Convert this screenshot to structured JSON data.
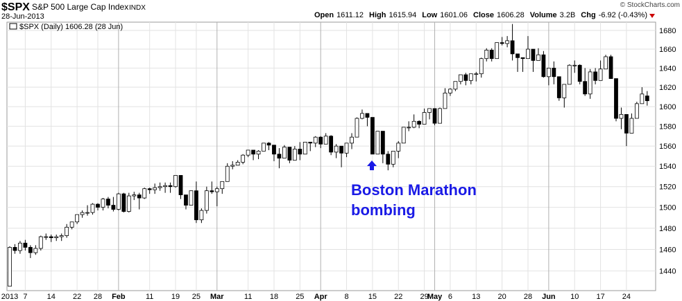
{
  "chart_data": {
    "type": "candlestick",
    "symbol": "$SPX",
    "name": "S&P 500 Large Cap Index",
    "exchange": "INDX",
    "date": "28-Jun-2013",
    "copyright": "© StockCharts.com",
    "legend": "$SPX (Daily) 1606.28 (28 Jun)",
    "quote": [
      {
        "label": "Open",
        "value": "1611.12"
      },
      {
        "label": "High",
        "value": "1615.94"
      },
      {
        "label": "Low",
        "value": "1601.06"
      },
      {
        "label": "Close",
        "value": "1606.28"
      },
      {
        "label": "Volume",
        "value": "3.2B"
      },
      {
        "label": "Chg",
        "value": "-6.92 (-0.43%)"
      }
    ],
    "annotation": [
      "Boston Marathon",
      "bombing"
    ],
    "log_scale": true,
    "grid": true,
    "ylim": [
      1422,
      1689
    ],
    "yticks": [
      1440,
      1460,
      1480,
      1500,
      1520,
      1540,
      1560,
      1580,
      1600,
      1620,
      1640,
      1660,
      1680
    ],
    "categories": [
      "2013",
      null,
      null,
      "7",
      null,
      null,
      null,
      null,
      "14",
      null,
      null,
      null,
      null,
      "22",
      null,
      null,
      null,
      "28",
      null,
      null,
      null,
      "Feb",
      null,
      null,
      null,
      null,
      null,
      "11",
      null,
      null,
      null,
      null,
      "19",
      null,
      null,
      null,
      "25",
      null,
      null,
      null,
      "Mar",
      null,
      null,
      null,
      null,
      null,
      "11",
      null,
      null,
      null,
      null,
      "18",
      null,
      null,
      null,
      null,
      "25",
      null,
      null,
      null,
      "Apr",
      null,
      null,
      null,
      null,
      "8",
      null,
      null,
      null,
      null,
      "15",
      null,
      null,
      null,
      null,
      "22",
      null,
      null,
      null,
      null,
      "29",
      null,
      "May",
      null,
      null,
      "6",
      null,
      null,
      null,
      null,
      "13",
      null,
      null,
      null,
      null,
      "20",
      null,
      null,
      null,
      null,
      "28",
      null,
      null,
      null,
      "Jun",
      null,
      null,
      null,
      null,
      "10",
      null,
      null,
      null,
      null,
      "17",
      null,
      null,
      null,
      null,
      "24",
      null,
      null,
      null,
      null
    ],
    "open": [
      1426,
      1462,
      1459,
      1466,
      1462,
      1457,
      1461,
      1472,
      1472,
      1471,
      1472,
      1473,
      1481,
      1486,
      1493,
      1495,
      1495,
      1503,
      1500,
      1508,
      1502,
      1498,
      1513,
      1496,
      1511,
      1512,
      1509,
      1518,
      1517,
      1519,
      1520,
      1521,
      1520,
      1531,
      1512,
      1502,
      1516,
      1488,
      1497,
      1516,
      1515,
      1518,
      1525,
      1540,
      1541,
      1544,
      1551,
      1556,
      1552,
      1555,
      1563,
      1561,
      1552,
      1548,
      1559,
      1546,
      1557,
      1552,
      1564,
      1563,
      1569,
      1562,
      1570,
      1554,
      1560,
      1553,
      1563,
      1569,
      1588,
      1593,
      1589,
      1552,
      1575,
      1552,
      1542,
      1555,
      1563,
      1579,
      1579,
      1585,
      1582,
      1594,
      1598,
      1583,
      1598,
      1614,
      1618,
      1626,
      1633,
      1627,
      1634,
      1634,
      1650,
      1659,
      1650,
      1667,
      1666,
      1669,
      1655,
      1651,
      1650,
      1660,
      1648,
      1654,
      1631,
      1640,
      1631,
      1609,
      1623,
      1643,
      1643,
      1626,
      1613,
      1636,
      1627,
      1639,
      1652,
      1629,
      1588,
      1592,
      1573,
      1588,
      1603,
      1611
    ],
    "high": [
      1463,
      1465,
      1468,
      1469,
      1464,
      1464,
      1473,
      1475,
      1474,
      1474,
      1475,
      1484,
      1486,
      1493,
      1497,
      1502,
      1504,
      1504,
      1509,
      1510,
      1510,
      1514,
      1514,
      1514,
      1515,
      1514,
      1519,
      1519,
      1523,
      1524,
      1524,
      1524,
      1531,
      1531,
      1512,
      1516,
      1525,
      1499,
      1520,
      1525,
      1520,
      1525,
      1543,
      1545,
      1546,
      1552,
      1556,
      1556,
      1556,
      1563,
      1564,
      1561,
      1558,
      1561,
      1559,
      1560,
      1564,
      1564,
      1564,
      1570,
      1570,
      1573,
      1571,
      1562,
      1560,
      1563,
      1573,
      1589,
      1597,
      1593,
      1589,
      1575,
      1575,
      1555,
      1555,
      1565,
      1579,
      1585,
      1592,
      1586,
      1598,
      1598,
      1598,
      1599,
      1619,
      1619,
      1626,
      1633,
      1635,
      1634,
      1636,
      1651,
      1661,
      1661,
      1667,
      1673,
      1674,
      1687,
      1655,
      1651,
      1674,
      1660,
      1661,
      1658,
      1640,
      1647,
      1631,
      1623,
      1644,
      1648,
      1644,
      1640,
      1639,
      1640,
      1648,
      1654,
      1654,
      1629,
      1599,
      1592,
      1593,
      1605,
      1620,
      1616
    ],
    "low": [
      1426,
      1456,
      1456,
      1459,
      1452,
      1455,
      1459,
      1469,
      1467,
      1468,
      1468,
      1471,
      1479,
      1484,
      1490,
      1492,
      1493,
      1497,
      1497,
      1499,
      1496,
      1497,
      1495,
      1495,
      1507,
      1498,
      1508,
      1513,
      1513,
      1516,
      1514,
      1514,
      1519,
      1508,
      1498,
      1502,
      1485,
      1485,
      1494,
      1513,
      1501,
      1513,
      1525,
      1537,
      1541,
      1542,
      1549,
      1546,
      1547,
      1555,
      1556,
      1545,
      1538,
      1548,
      1543,
      1546,
      1546,
      1552,
      1555,
      1559,
      1558,
      1562,
      1551,
      1548,
      1539,
      1549,
      1557,
      1569,
      1587,
      1580,
      1552,
      1553,
      1543,
      1536,
      1539,
      1548,
      1563,
      1575,
      1578,
      1578,
      1582,
      1587,
      1581,
      1583,
      1598,
      1611,
      1616,
      1623,
      1622,
      1623,
      1626,
      1630,
      1647,
      1647,
      1650,
      1664,
      1662,
      1648,
      1636,
      1636,
      1652,
      1636,
      1648,
      1630,
      1622,
      1623,
      1606,
      1599,
      1623,
      1635,
      1623,
      1611,
      1608,
      1623,
      1627,
      1639,
      1629,
      1585,
      1577,
      1560,
      1573,
      1588,
      1603,
      1601
    ],
    "close": [
      1462,
      1459,
      1466,
      1462,
      1457,
      1461,
      1472,
      1472,
      1471,
      1472,
      1473,
      1481,
      1486,
      1493,
      1495,
      1495,
      1503,
      1500,
      1508,
      1502,
      1498,
      1513,
      1496,
      1511,
      1512,
      1509,
      1518,
      1517,
      1519,
      1520,
      1521,
      1520,
      1531,
      1512,
      1502,
      1516,
      1488,
      1497,
      1516,
      1515,
      1518,
      1525,
      1540,
      1541,
      1544,
      1551,
      1556,
      1552,
      1555,
      1563,
      1561,
      1552,
      1548,
      1559,
      1546,
      1557,
      1552,
      1564,
      1563,
      1569,
      1562,
      1570,
      1554,
      1560,
      1553,
      1563,
      1569,
      1588,
      1593,
      1589,
      1552,
      1575,
      1552,
      1542,
      1555,
      1563,
      1579,
      1579,
      1585,
      1582,
      1594,
      1598,
      1583,
      1598,
      1614,
      1618,
      1626,
      1633,
      1627,
      1634,
      1634,
      1650,
      1659,
      1650,
      1667,
      1666,
      1669,
      1655,
      1651,
      1650,
      1660,
      1648,
      1654,
      1631,
      1640,
      1631,
      1609,
      1623,
      1643,
      1643,
      1626,
      1613,
      1636,
      1627,
      1639,
      1652,
      1629,
      1588,
      1592,
      1573,
      1588,
      1603,
      1613,
      1606
    ],
    "up_color": "#ffffff",
    "down_color": "#000000",
    "annotation_color": "#1a1ae6"
  }
}
